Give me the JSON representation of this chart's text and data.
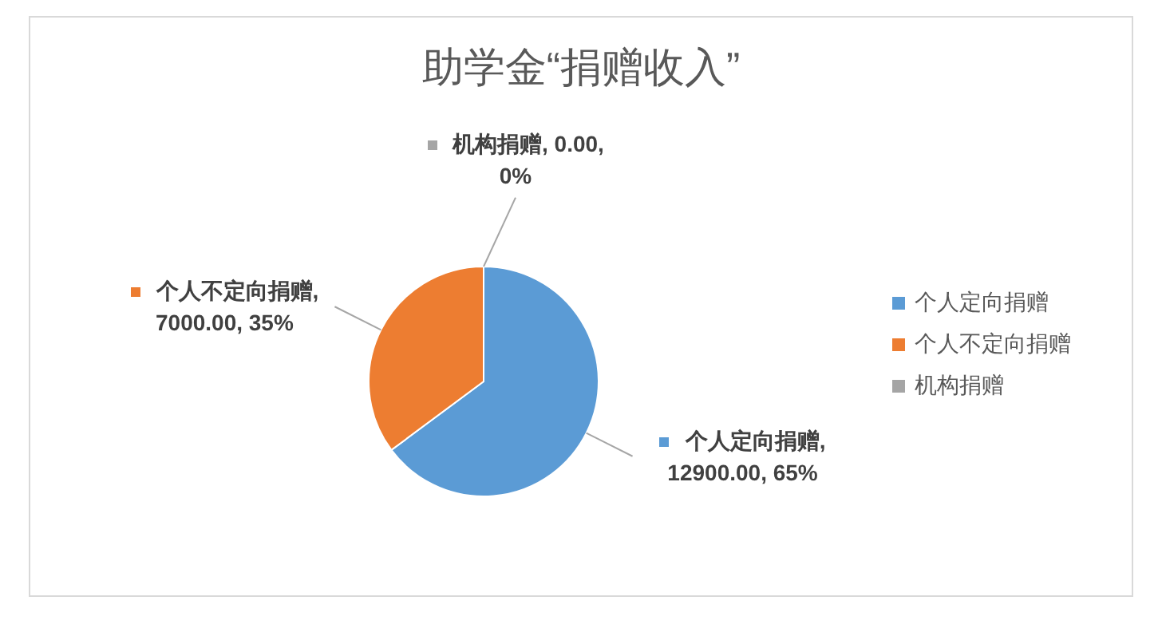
{
  "chart_data": {
    "type": "pie",
    "title": "助学金“捐赠收入”",
    "categories": [
      "个人定向捐赠",
      "个人不定向捐赠",
      "机构捐赠"
    ],
    "values": [
      12900,
      7000,
      0
    ],
    "value_labels": [
      "个人定向捐赠, 12900.00, 65%",
      "个人不定向捐赠, 7000.00, 35%",
      "机构捐赠, 0.00, 0%"
    ],
    "colors": [
      "#5b9bd5",
      "#ed7d31",
      "#a5a5a5"
    ],
    "legend": "right"
  }
}
